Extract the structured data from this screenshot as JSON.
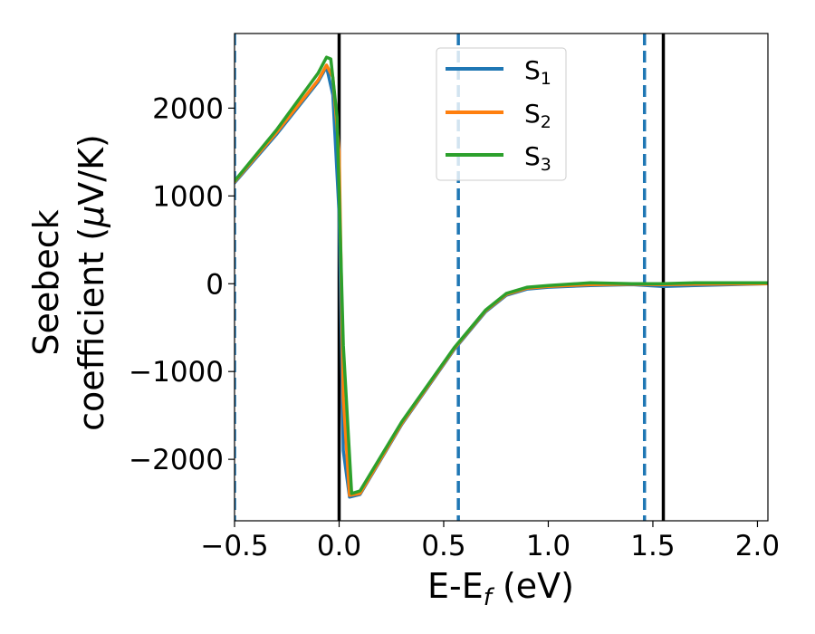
{
  "chart_data": {
    "type": "line",
    "xlabel": {
      "main": "E-E",
      "sub": "f",
      "unit": " (eV)"
    },
    "ylabel": {
      "line1": "Seebeck",
      "line2": "coefficient  (",
      "mu": "μ",
      "line2_end": "V/K)"
    },
    "xlim": [
      -0.5,
      2.05
    ],
    "ylim": [
      -2700,
      2850
    ],
    "xticks": [
      -0.5,
      0.0,
      0.5,
      1.0,
      1.5,
      2.0
    ],
    "xtick_labels": [
      "−0.5",
      "0.0",
      "0.5",
      "1.0",
      "1.5",
      "2.0"
    ],
    "yticks": [
      -2000,
      -1000,
      0,
      1000,
      2000
    ],
    "ytick_labels": [
      "−2000",
      "−1000",
      "0",
      "1000",
      "2000"
    ],
    "grid": false,
    "legend_position": "top-center",
    "series": [
      {
        "name": "S",
        "sub": "1",
        "color": "#1f77b4",
        "x": [
          -0.5,
          -0.3,
          -0.1,
          -0.06,
          -0.03,
          0.0,
          0.02,
          0.05,
          0.1,
          0.3,
          0.55,
          0.7,
          0.8,
          0.9,
          1.0,
          1.2,
          1.4,
          1.55,
          1.7,
          2.05
        ],
        "y": [
          1150,
          1700,
          2300,
          2470,
          2150,
          800,
          -1900,
          -2430,
          -2400,
          -1600,
          -750,
          -320,
          -130,
          -60,
          -40,
          -20,
          -10,
          -30,
          -20,
          0
        ]
      },
      {
        "name": "S",
        "sub": "2",
        "color": "#ff7f0e",
        "x": [
          -0.5,
          -0.3,
          -0.1,
          -0.06,
          -0.03,
          0.0,
          0.02,
          0.05,
          0.1,
          0.3,
          0.55,
          0.7,
          0.8,
          0.9,
          1.0,
          1.2,
          1.4,
          1.55,
          1.7,
          2.05
        ],
        "y": [
          1160,
          1720,
          2320,
          2490,
          2350,
          1500,
          -1300,
          -2410,
          -2390,
          -1590,
          -740,
          -310,
          -120,
          -50,
          -30,
          -10,
          -5,
          -10,
          -5,
          0
        ]
      },
      {
        "name": "S",
        "sub": "3",
        "color": "#2ca02c",
        "x": [
          -0.5,
          -0.3,
          -0.1,
          -0.06,
          -0.04,
          -0.01,
          0.02,
          0.06,
          0.1,
          0.3,
          0.55,
          0.7,
          0.8,
          0.9,
          1.0,
          1.2,
          1.4,
          1.55,
          1.7,
          2.05
        ],
        "y": [
          1170,
          1750,
          2400,
          2580,
          2560,
          1900,
          -700,
          -2390,
          -2360,
          -1570,
          -730,
          -300,
          -110,
          -40,
          -20,
          10,
          0,
          0,
          10,
          10
        ]
      }
    ],
    "vlines": [
      {
        "x": 0.0,
        "style": "solid",
        "color": "#000000"
      },
      {
        "x": 1.55,
        "style": "solid",
        "color": "#000000"
      },
      {
        "x": 0.57,
        "style": "dashed",
        "color": "#1f77b4"
      },
      {
        "x": 1.46,
        "style": "dashed",
        "color": "#1f77b4"
      },
      {
        "x": -0.5,
        "style": "dashed",
        "color": "#1f77b4"
      }
    ]
  }
}
